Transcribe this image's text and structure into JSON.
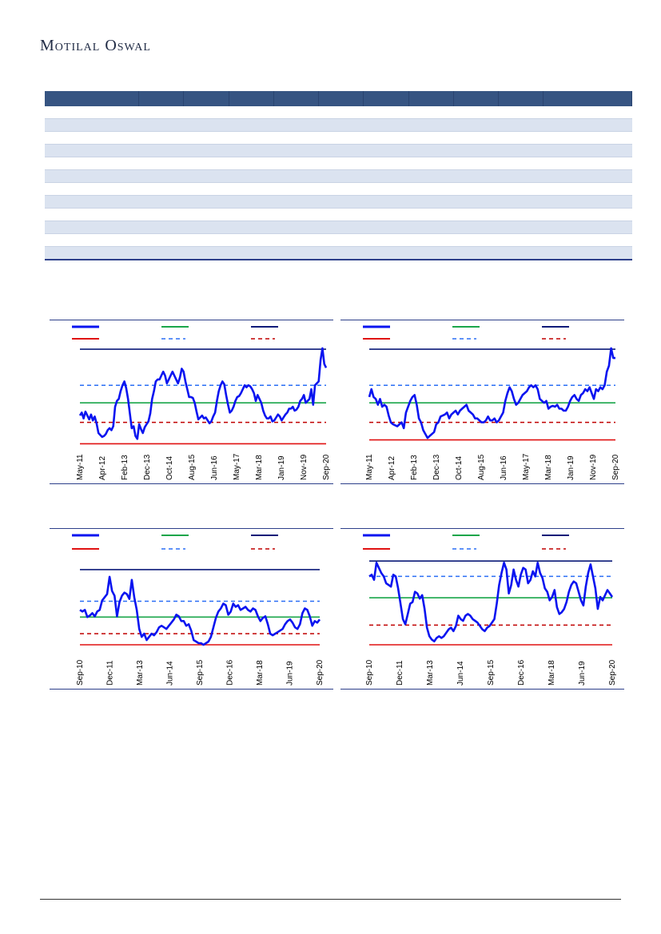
{
  "header": {
    "brand": "Motilal Oswal"
  },
  "colors": {
    "header_fill": "#365482",
    "band": "#dbe3f0",
    "rule": "#2d3f8a",
    "series": "#0a14f0",
    "avg": "#1aa64a",
    "max": "#0b1a78",
    "min": "#e01212",
    "plus_sd": "#2a6ef5",
    "minus_sd": "#c00000"
  },
  "table": {
    "columns": 11,
    "rows": 12
  },
  "legend_styles": [
    "series-line",
    "avg-line",
    "max-line",
    "min-line",
    "plus-sd-dashed",
    "minus-sd-dashed"
  ],
  "chart_data": [
    {
      "type": "line",
      "x_labels": [
        "May-11",
        "Apr-12",
        "Feb-13",
        "Dec-13",
        "Oct-14",
        "Aug-15",
        "Jun-16",
        "May-17",
        "Mar-18",
        "Jan-19",
        "Nov-19",
        "Sep-20"
      ],
      "ylim": [
        0,
        100
      ],
      "grid": false,
      "legend_position": "top",
      "reference_lines": {
        "max": 95,
        "plus_sd": 58,
        "avg": 40,
        "minus_sd": 20,
        "min": -2
      },
      "series": [
        {
          "values": [
            27,
            30,
            24,
            31,
            27,
            23,
            28,
            22,
            26,
            19,
            9,
            7,
            5,
            6,
            8,
            12,
            14,
            12,
            16,
            36,
            42,
            44,
            52,
            58,
            62,
            55,
            44,
            29,
            14,
            16,
            6,
            3,
            18,
            13,
            9,
            15,
            18,
            21,
            29,
            44,
            52,
            62,
            64,
            64,
            68,
            72,
            68,
            60,
            64,
            68,
            72,
            68,
            64,
            60,
            66,
            75,
            72,
            62,
            54,
            46,
            46,
            45,
            40,
            31,
            23,
            25,
            27,
            24,
            25,
            22,
            19,
            21,
            26,
            30,
            42,
            52,
            58,
            62,
            59,
            48,
            38,
            30,
            32,
            36,
            42,
            46,
            47,
            50,
            54,
            58,
            56,
            58,
            57,
            54,
            50,
            42,
            48,
            44,
            40,
            32,
            27,
            24,
            24,
            26,
            21,
            22,
            25,
            28,
            26,
            22,
            25,
            28,
            30,
            34,
            34,
            36,
            32,
            33,
            36,
            42,
            44,
            48,
            40,
            42,
            44,
            54,
            38,
            58,
            60,
            62,
            84,
            96,
            80,
            76
          ]
        }
      ]
    },
    {
      "type": "line",
      "x_labels": [
        "May-11",
        "Apr-12",
        "Feb-13",
        "Dec-13",
        "Oct-14",
        "Aug-15",
        "Jun-16",
        "May-17",
        "Mar-18",
        "Jan-19",
        "Nov-19",
        "Sep-20"
      ],
      "ylim": [
        0,
        100
      ],
      "grid": false,
      "legend_position": "top",
      "reference_lines": {
        "max": 95,
        "plus_sd": 58,
        "avg": 40,
        "minus_sd": 20,
        "min": 2
      },
      "series": [
        {
          "values": [
            46,
            54,
            46,
            44,
            38,
            44,
            36,
            38,
            36,
            27,
            20,
            18,
            17,
            16,
            18,
            20,
            14,
            30,
            36,
            42,
            46,
            48,
            38,
            24,
            20,
            12,
            8,
            4,
            6,
            8,
            10,
            18,
            20,
            26,
            27,
            28,
            30,
            24,
            28,
            30,
            32,
            28,
            32,
            34,
            36,
            38,
            32,
            30,
            28,
            24,
            24,
            22,
            20,
            20,
            22,
            26,
            22,
            22,
            24,
            20,
            22,
            26,
            30,
            42,
            50,
            56,
            52,
            44,
            38,
            40,
            44,
            48,
            50,
            52,
            56,
            58,
            56,
            58,
            54,
            44,
            42,
            40,
            42,
            34,
            36,
            37,
            36,
            38,
            34,
            34,
            32,
            32,
            36,
            42,
            46,
            48,
            44,
            42,
            48,
            50,
            54,
            52,
            56,
            50,
            44,
            54,
            52,
            56,
            54,
            58,
            72,
            78,
            96,
            86,
            86
          ]
        }
      ]
    },
    {
      "type": "line",
      "x_labels": [
        "Sep-10",
        "Dec-11",
        "Mar-13",
        "Jun-14",
        "Sep-15",
        "Dec-16",
        "Mar-18",
        "Jun-19",
        "Sep-20"
      ],
      "ylim": [
        0,
        100
      ],
      "grid": false,
      "legend_position": "top",
      "reference_lines": {
        "max": 95,
        "plus_sd": 55,
        "avg": 35,
        "minus_sd": 14,
        "min": 0
      },
      "series": [
        {
          "values": [
            44,
            42,
            44,
            35,
            37,
            40,
            36,
            42,
            44,
            56,
            60,
            64,
            86,
            68,
            62,
            36,
            54,
            62,
            66,
            64,
            58,
            82,
            60,
            44,
            20,
            10,
            14,
            6,
            10,
            14,
            12,
            16,
            22,
            24,
            22,
            20,
            24,
            28,
            32,
            38,
            36,
            30,
            30,
            24,
            26,
            18,
            6,
            4,
            2,
            2,
            0,
            2,
            4,
            10,
            22,
            34,
            42,
            46,
            52,
            50,
            38,
            42,
            52,
            48,
            50,
            44,
            46,
            48,
            44,
            42,
            46,
            44,
            36,
            30,
            34,
            36,
            26,
            14,
            12,
            14,
            16,
            18,
            20,
            26,
            30,
            32,
            28,
            22,
            20,
            26,
            40,
            46,
            44,
            36,
            24,
            30,
            28,
            32
          ]
        }
      ]
    },
    {
      "type": "line",
      "x_labels": [
        "Sep-10",
        "Dec-11",
        "Mar-13",
        "Jun-14",
        "Sep-15",
        "Dec-16",
        "Mar-18",
        "Jun-19",
        "Sep-20"
      ],
      "ylim": [
        0,
        100
      ],
      "grid": false,
      "legend_position": "top",
      "reference_lines": {
        "max": 98,
        "plus_sd": 80,
        "avg": 55,
        "minus_sd": 23,
        "min": 0
      },
      "series": [
        {
          "values": [
            80,
            82,
            76,
            96,
            90,
            84,
            80,
            72,
            70,
            68,
            82,
            80,
            66,
            48,
            30,
            24,
            36,
            48,
            50,
            62,
            60,
            54,
            58,
            42,
            20,
            10,
            6,
            4,
            8,
            10,
            8,
            10,
            14,
            18,
            20,
            16,
            22,
            34,
            30,
            28,
            34,
            36,
            34,
            30,
            28,
            26,
            22,
            18,
            16,
            20,
            22,
            26,
            30,
            48,
            70,
            84,
            96,
            88,
            60,
            70,
            88,
            76,
            68,
            82,
            90,
            88,
            72,
            76,
            86,
            80,
            96,
            84,
            78,
            66,
            62,
            52,
            56,
            64,
            44,
            36,
            38,
            42,
            50,
            62,
            70,
            74,
            72,
            62,
            52,
            46,
            68,
            84,
            94,
            80,
            66,
            42,
            56,
            52,
            58,
            64,
            60,
            56
          ]
        }
      ]
    }
  ]
}
